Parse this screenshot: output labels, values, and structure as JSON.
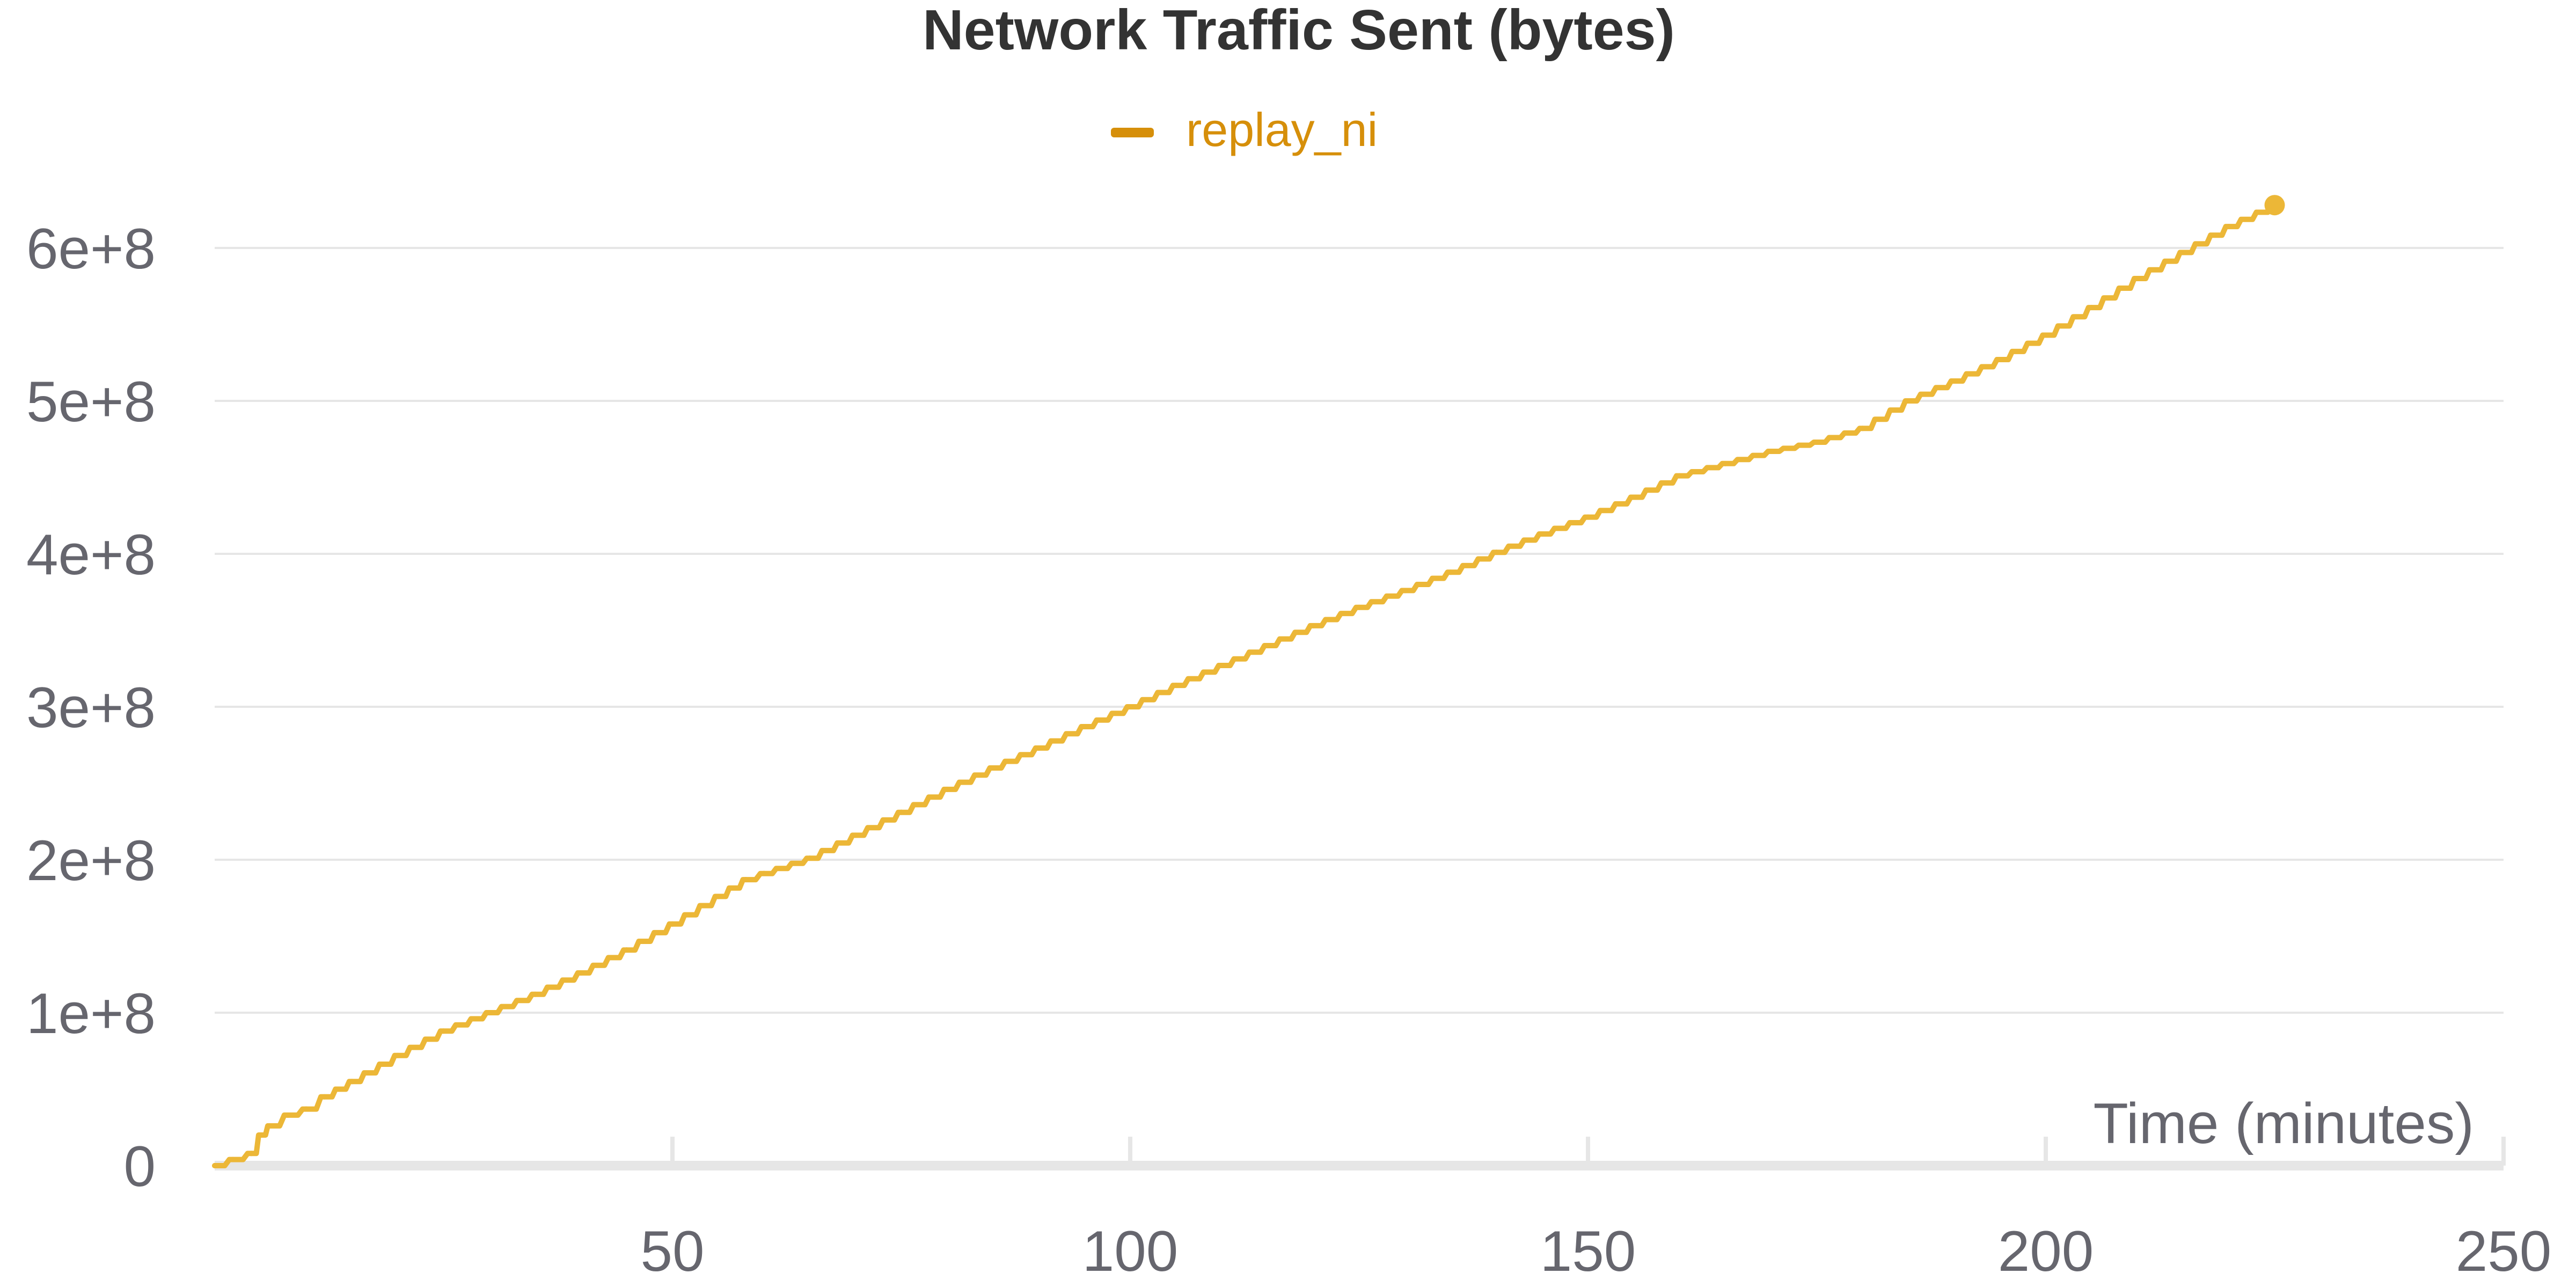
{
  "chart_data": {
    "type": "line",
    "title": "Network Traffic Sent (bytes)",
    "xlabel": "Time (minutes)",
    "ylabel": "",
    "xlim": [
      0,
      250
    ],
    "ylim": [
      0,
      600000000
    ],
    "x_ticks": [
      50,
      100,
      150,
      200,
      250
    ],
    "y_ticks": [
      0,
      100000000,
      200000000,
      300000000,
      400000000,
      500000000,
      600000000
    ],
    "x_tick_labels": [
      "50",
      "100",
      "150",
      "200",
      "250"
    ],
    "y_tick_labels": [
      "0",
      "1e+8",
      "2e+8",
      "3e+8",
      "4e+8",
      "5e+8",
      "6e+8"
    ],
    "grid": true,
    "legend_position": "top-center",
    "series": [
      {
        "name": "replay_ni",
        "color": "#ecb737",
        "legend_color": "#d68f0a",
        "x": [
          0,
          2,
          4,
          5,
          6,
          8,
          10,
          12,
          15,
          20,
          25,
          30,
          35,
          40,
          45,
          50,
          55,
          58,
          60,
          65,
          70,
          75,
          80,
          85,
          90,
          95,
          100,
          105,
          110,
          115,
          120,
          125,
          130,
          135,
          140,
          145,
          150,
          155,
          160,
          165,
          170,
          175,
          180,
          185,
          190,
          195,
          200,
          205,
          210,
          215,
          220,
          225
        ],
        "y": [
          0,
          4000000,
          8000000,
          20000000,
          26000000,
          33000000,
          37000000,
          45000000,
          55000000,
          72000000,
          88000000,
          100000000,
          112000000,
          126000000,
          141000000,
          158000000,
          176000000,
          187000000,
          191000000,
          201000000,
          216000000,
          231000000,
          246000000,
          260000000,
          273000000,
          287000000,
          300000000,
          314000000,
          327000000,
          340000000,
          353000000,
          365000000,
          376000000,
          388000000,
          401000000,
          413000000,
          424000000,
          437000000,
          451000000,
          459000000,
          467000000,
          473000000,
          482000000,
          500000000,
          513000000,
          527000000,
          543000000,
          561000000,
          580000000,
          597000000,
          614000000,
          628000000
        ]
      }
    ]
  }
}
